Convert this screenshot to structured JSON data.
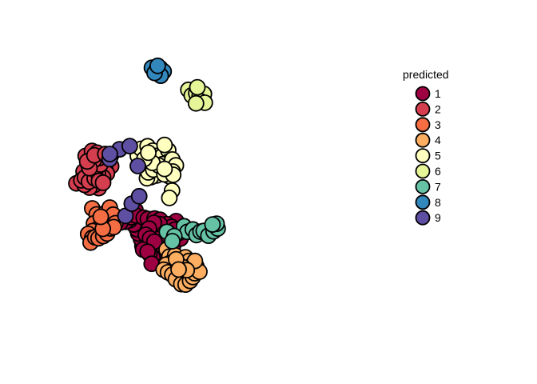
{
  "chart_data": {
    "type": "scatter",
    "title": "",
    "xlabel": "",
    "ylabel": "",
    "axes_visible": false,
    "grid": false,
    "xlim": [
      0,
      100
    ],
    "ylim": [
      0,
      100
    ],
    "legend": {
      "title": "predicted",
      "placement": "right"
    },
    "series": [
      {
        "name": "1",
        "color": "#9E0142",
        "points": [
          [
            38.6,
            48.0
          ],
          [
            40.7,
            45.4
          ],
          [
            43.4,
            45.9
          ],
          [
            46.5,
            44.9
          ],
          [
            48.3,
            42.2
          ],
          [
            48.5,
            46.5
          ],
          [
            51.6,
            45.5
          ],
          [
            50.7,
            48.0
          ],
          [
            51.0,
            50.5
          ],
          [
            49.6,
            53.6
          ],
          [
            44.5,
            49.5
          ],
          [
            41.9,
            50.5
          ],
          [
            38.5,
            52.1
          ],
          [
            36.3,
            49.7
          ],
          [
            35.1,
            50.3
          ],
          [
            36.6,
            46.0
          ],
          [
            37.6,
            43.0
          ],
          [
            39.7,
            41.9
          ],
          [
            42.0,
            42.5
          ],
          [
            45.0,
            41.1
          ],
          [
            47.1,
            39.4
          ],
          [
            44.9,
            38.7
          ],
          [
            42.6,
            38.0
          ],
          [
            40.7,
            35.4
          ],
          [
            39.2,
            36.8
          ],
          [
            37.8,
            38.3
          ],
          [
            34.7,
            42.0
          ],
          [
            34.1,
            45.2
          ],
          [
            32.9,
            47.8
          ],
          [
            32.3,
            49.8
          ],
          [
            30.9,
            52.0
          ],
          [
            29.1,
            54.0
          ],
          [
            27.2,
            53.3
          ],
          [
            25.0,
            53.0
          ],
          [
            27.6,
            56.0
          ],
          [
            30.0,
            55.4
          ],
          [
            31.6,
            58.8
          ],
          [
            31.8,
            56.2
          ],
          [
            35.3,
            55.2
          ],
          [
            37.1,
            54.6
          ],
          [
            40.1,
            54.8
          ],
          [
            42.5,
            54.2
          ],
          [
            45.5,
            52.2
          ],
          [
            47.6,
            50.9
          ],
          [
            49.0,
            49.6
          ],
          [
            45.9,
            48.4
          ],
          [
            43.0,
            47.6
          ],
          [
            42.3,
            52.2
          ],
          [
            39.8,
            52.8
          ],
          [
            37.6,
            50.1
          ],
          [
            36.2,
            47.2
          ],
          [
            38.1,
            45.5
          ],
          [
            40.0,
            44.0
          ],
          [
            35.0,
            40.3
          ],
          [
            37.0,
            39.3
          ],
          [
            38.8,
            33.7
          ]
        ]
      },
      {
        "name": "2",
        "color": "#D53E4F",
        "points": [
          [
            5.5,
            71.2
          ],
          [
            8.7,
            76.7
          ],
          [
            10.9,
            74.5
          ],
          [
            11.6,
            76.9
          ],
          [
            12.9,
            79.7
          ],
          [
            10.7,
            80.2
          ],
          [
            9.6,
            84.0
          ],
          [
            12.4,
            86.3
          ],
          [
            14.7,
            85.5
          ],
          [
            16.9,
            82.4
          ],
          [
            18.9,
            82.8
          ],
          [
            20.8,
            84.3
          ],
          [
            19.3,
            79.9
          ],
          [
            20.9,
            79.2
          ],
          [
            18.4,
            77.4
          ],
          [
            19.0,
            75.8
          ],
          [
            17.3,
            74.0
          ],
          [
            16.4,
            71.6
          ],
          [
            15.4,
            69.0
          ],
          [
            13.4,
            70.4
          ],
          [
            11.3,
            69.2
          ],
          [
            9.1,
            70.5
          ],
          [
            7.7,
            72.6
          ],
          [
            9.3,
            73.9
          ],
          [
            11.1,
            72.0
          ],
          [
            13.6,
            73.5
          ],
          [
            15.0,
            76.0
          ],
          [
            14.4,
            78.4
          ],
          [
            16.1,
            80.0
          ],
          [
            15.6,
            83.0
          ],
          [
            13.2,
            82.0
          ],
          [
            11.3,
            78.3
          ],
          [
            15.5,
            72.3
          ],
          [
            17.3,
            71.5
          ],
          [
            10.3,
            81.4
          ],
          [
            13.5,
            84.3
          ],
          [
            18.3,
            84.9
          ]
        ]
      },
      {
        "name": "3",
        "color": "#F46D43",
        "points": [
          [
            12.5,
            59.5
          ],
          [
            14.5,
            56.7
          ],
          [
            15.7,
            54.2
          ],
          [
            13.3,
            52.5
          ],
          [
            14.8,
            49.8
          ],
          [
            12.7,
            48.9
          ],
          [
            10.7,
            47.6
          ],
          [
            12.5,
            45.8
          ],
          [
            11.8,
            43.6
          ],
          [
            13.8,
            46.0
          ],
          [
            15.3,
            45.6
          ],
          [
            17.4,
            46.6
          ],
          [
            19.1,
            47.8
          ],
          [
            20.5,
            50.2
          ],
          [
            18.4,
            52.1
          ],
          [
            20.1,
            54.5
          ],
          [
            18.3,
            57.3
          ],
          [
            20.3,
            59.9
          ],
          [
            21.8,
            56.6
          ],
          [
            22.8,
            52.6
          ],
          [
            22.0,
            50.8
          ],
          [
            17.2,
            50.0
          ],
          [
            16.3,
            55.6
          ]
        ]
      },
      {
        "name": "4",
        "color": "#FDAE61",
        "points": [
          [
            45.4,
            40.3
          ],
          [
            46.6,
            37.0
          ],
          [
            49.2,
            37.6
          ],
          [
            51.2,
            35.3
          ],
          [
            53.7,
            36.7
          ],
          [
            55.3,
            35.0
          ],
          [
            56.9,
            33.3
          ],
          [
            56.4,
            30.8
          ],
          [
            55.2,
            28.0
          ],
          [
            53.4,
            25.8
          ],
          [
            52.2,
            27.6
          ],
          [
            50.7,
            29.7
          ],
          [
            48.7,
            31.4
          ],
          [
            46.7,
            33.9
          ],
          [
            45.2,
            33.3
          ],
          [
            44.1,
            30.9
          ],
          [
            46.0,
            29.7
          ],
          [
            47.9,
            28.6
          ],
          [
            49.5,
            26.4
          ],
          [
            51.9,
            24.2
          ],
          [
            53.8,
            24.0
          ],
          [
            55.8,
            25.7
          ],
          [
            57.0,
            27.5
          ],
          [
            57.8,
            29.3
          ],
          [
            58.6,
            32.4
          ],
          [
            59.9,
            30.0
          ],
          [
            57.9,
            35.0
          ],
          [
            50.5,
            33.5
          ],
          [
            52.6,
            32.1
          ],
          [
            54.3,
            30.7
          ],
          [
            49.6,
            35.8
          ],
          [
            50.7,
            31.0
          ]
        ]
      },
      {
        "name": "5",
        "color": "#FFFFBF",
        "points": [
          [
            32.7,
            84.0
          ],
          [
            34.2,
            87.3
          ],
          [
            37.0,
            88.5
          ],
          [
            39.3,
            86.4
          ],
          [
            40.8,
            84.0
          ],
          [
            43.7,
            84.2
          ],
          [
            46.1,
            86.6
          ],
          [
            44.5,
            89.1
          ],
          [
            46.0,
            81.2
          ],
          [
            43.7,
            80.2
          ],
          [
            42.2,
            77.0
          ],
          [
            41.0,
            74.9
          ],
          [
            38.5,
            74.1
          ],
          [
            36.7,
            73.6
          ],
          [
            37.3,
            76.3
          ],
          [
            39.5,
            77.6
          ],
          [
            41.8,
            79.6
          ],
          [
            39.1,
            80.8
          ],
          [
            35.6,
            82.6
          ],
          [
            37.3,
            85.5
          ],
          [
            47.9,
            82.3
          ],
          [
            49.5,
            79.6
          ],
          [
            48.1,
            76.7
          ],
          [
            46.5,
            74.6
          ],
          [
            44.4,
            75.4
          ],
          [
            47.8,
            67.8
          ],
          [
            46.6,
            64.4
          ],
          [
            48.3,
            75.2
          ],
          [
            44.5,
            77.9
          ]
        ]
      },
      {
        "name": "6",
        "color": "#E6F598",
        "points": [
          [
            55.0,
            114.8
          ],
          [
            56.5,
            112.2
          ],
          [
            58.5,
            113.2
          ],
          [
            60.0,
            111.9
          ],
          [
            61.9,
            112.9
          ],
          [
            60.3,
            109.5
          ],
          [
            62.3,
            108.8
          ],
          [
            58.4,
            108.5
          ],
          [
            59.0,
            116.0
          ]
        ]
      },
      {
        "name": "7",
        "color": "#66C2A5",
        "points": [
          [
            53.1,
            51.2
          ],
          [
            54.6,
            48.6
          ],
          [
            57.0,
            49.7
          ],
          [
            58.6,
            47.1
          ],
          [
            60.4,
            48.7
          ],
          [
            61.8,
            49.0
          ],
          [
            63.9,
            46.8
          ],
          [
            66.2,
            48.8
          ],
          [
            68.0,
            50.1
          ],
          [
            67.5,
            52.4
          ],
          [
            65.7,
            52.0
          ],
          [
            45.5,
            48.6
          ],
          [
            48.8,
            46.6
          ],
          [
            47.9,
            44.2
          ]
        ]
      },
      {
        "name": "8",
        "color": "#3288BD",
        "points": [
          [
            38.9,
            125.1
          ],
          [
            41.0,
            124.1
          ],
          [
            42.6,
            124.9
          ],
          [
            44.1,
            123.4
          ],
          [
            42.8,
            121.4
          ],
          [
            40.1,
            122.7
          ],
          [
            41.5,
            126.0
          ]
        ]
      },
      {
        "name": "9",
        "color": "#5E4FA2",
        "points": [
          [
            24.6,
            87.1
          ],
          [
            29.1,
            88.6
          ],
          [
            32.7,
            79.3
          ],
          [
            20.2,
            82.5
          ],
          [
            20.3,
            84.9
          ],
          [
            27.2,
            56.0
          ],
          [
            30.0,
            61.7
          ],
          [
            33.3,
            65.2
          ]
        ]
      }
    ]
  }
}
